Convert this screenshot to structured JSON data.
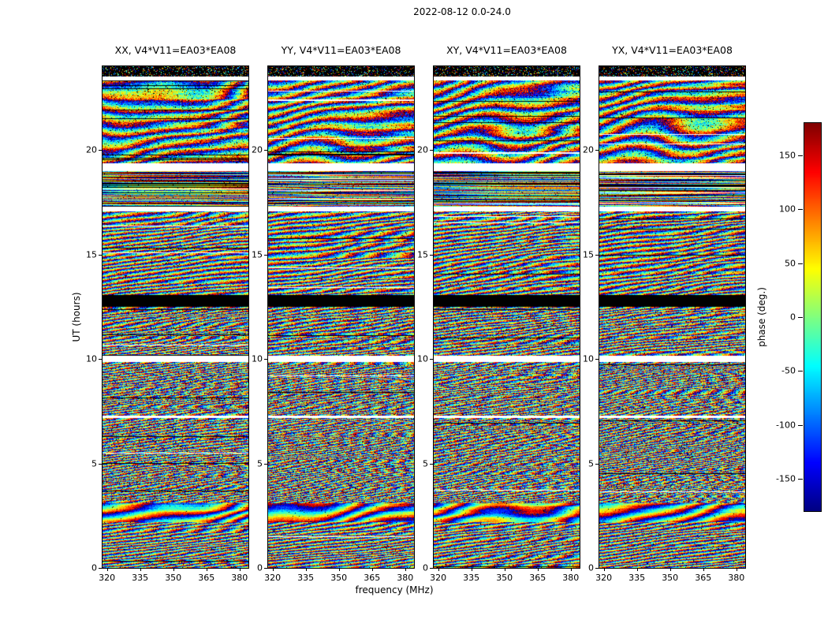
{
  "figure": {
    "title": "2022-08-12 0.0-24.0"
  },
  "axes": {
    "xlabel": "frequency (MHz)",
    "ylabel": "UT (hours)",
    "x_ticks": [
      320,
      335,
      350,
      365,
      380
    ],
    "y_ticks": [
      0,
      5,
      10,
      15,
      20
    ],
    "xlim": [
      318,
      384
    ],
    "ylim": [
      0,
      24
    ]
  },
  "colorbar": {
    "label": "phase (deg.)",
    "ticks": [
      150,
      100,
      50,
      0,
      -50,
      -100,
      -150
    ],
    "vmin": -180,
    "vmax": 180
  },
  "panels": [
    {
      "title": "XX, V4*V11=EA03*EA08"
    },
    {
      "title": "YY, V4*V11=EA03*EA08"
    },
    {
      "title": "XY, V4*V11=EA03*EA08"
    },
    {
      "title": "YX, V4*V11=EA03*EA08"
    }
  ],
  "chart_data": {
    "type": "heatmap",
    "title": "2022-08-12 0.0-24.0",
    "xlabel": "frequency (MHz)",
    "ylabel": "UT (hours)",
    "xlim": [
      318,
      384
    ],
    "ylim": [
      0,
      24
    ],
    "x_ticks": [
      320,
      335,
      350,
      365,
      380
    ],
    "y_ticks": [
      0,
      5,
      10,
      15,
      20
    ],
    "grid": false,
    "legend": null,
    "colormap": "jet",
    "value_label": "phase (deg.)",
    "value_range": [
      -180,
      180
    ],
    "colorbar_ticks": [
      150,
      100,
      50,
      0,
      -50,
      -100,
      -150
    ],
    "panels": [
      "XX, V4*V11=EA03*EA08",
      "YY, V4*V11=EA03*EA08",
      "XY, V4*V11=EA03*EA08",
      "YX, V4*V11=EA03*EA08"
    ],
    "description": "Four dynamic-spectrum panels of interferometric visibility phase (baseline V4*V11 = EA03*EA08) versus frequency and UT for 2022-08-12, polarizations XX/YY/XY/YX; values are noise-like wrapped phases rendered with a jet colormap. Exact per-pixel phases are not recoverable; the time-band structure below describes the visible content.",
    "time_bands": [
      {
        "t0": 23.5,
        "t1": 24.05,
        "style": "black",
        "speckle": 0.2,
        "note": "black strip with colored speckles at top"
      },
      {
        "t0": 23.33,
        "t1": 23.5,
        "style": "white",
        "note": "thin blank gap"
      },
      {
        "t0": 19.35,
        "t1": 23.33,
        "style": "fringes",
        "k": 2.2,
        "kvar": 1.6,
        "drift": 0.07,
        "jitter": 0.14,
        "noise": 0.3,
        "blob": 1.0,
        "rowdrop": 0.03,
        "whiterow": 0.012,
        "pepper": 0.045,
        "note": "broad diagonal phase swirls"
      },
      {
        "t0": 19.0,
        "t1": 19.35,
        "style": "white",
        "note": "blank gap"
      },
      {
        "t0": 17.3,
        "t1": 19.0,
        "style": "fringes",
        "k": 0.8,
        "kvar": 0.6,
        "drift": 0.55,
        "jitter": 0.55,
        "noise": 0.18,
        "blob": 0.15,
        "rowdrop": 0.2,
        "whiterow": 0.06,
        "pepper": 0.02,
        "note": "horizontally striped scan with dropouts"
      },
      {
        "t0": 17.05,
        "t1": 17.3,
        "style": "white",
        "note": "blank gap"
      },
      {
        "t0": 13.05,
        "t1": 17.05,
        "style": "fringes",
        "k": 4.0,
        "kvar": 2.0,
        "drift": 0.18,
        "jitter": 0.26,
        "noise": 0.3,
        "blob": 0.55,
        "rowdrop": 0.02,
        "whiterow": 0.006,
        "pepper": 0.03
      },
      {
        "t0": 12.5,
        "t1": 13.05,
        "style": "black",
        "speckle": 0.0,
        "note": "solid black band near UT 12.7"
      },
      {
        "t0": 10.15,
        "t1": 12.5,
        "style": "fringes",
        "k": 6.0,
        "kvar": 2.5,
        "drift": 0.25,
        "jitter": 0.35,
        "noise": 0.35,
        "blob": 0.4,
        "rowdrop": 0.02,
        "whiterow": 0.005,
        "pepper": 0.04
      },
      {
        "t0": 9.85,
        "t1": 10.15,
        "style": "white",
        "note": "blank gap near UT 10"
      },
      {
        "t0": 7.18,
        "t1": 7.3,
        "style": "white",
        "note": "thin blank line"
      },
      {
        "t0": 3.1,
        "t1": 9.85,
        "style": "fringes",
        "k": 8.5,
        "kvar": 3.0,
        "drift": 0.3,
        "jitter": 0.4,
        "noise": 0.4,
        "blob": 0.35,
        "rowdrop": 0.015,
        "whiterow": 0.004,
        "pepper": 0.04,
        "note": "dense fine fringes"
      },
      {
        "t0": 2.2,
        "t1": 3.1,
        "style": "fringes",
        "k": 2.5,
        "kvar": 1.2,
        "drift": 0.06,
        "jitter": 0.1,
        "noise": 0.15,
        "blob": 0.8,
        "rowdrop": 0.0,
        "whiterow": 0.0,
        "pepper": 0.01,
        "note": "smooth low-noise patch"
      },
      {
        "t0": 0.0,
        "t1": 2.2,
        "style": "fringes",
        "k": 6.5,
        "kvar": 2.0,
        "drift": 0.25,
        "jitter": 0.3,
        "noise": 0.3,
        "blob": 0.35,
        "rowdrop": 0.01,
        "whiterow": 0.004,
        "pepper": 0.03
      }
    ]
  }
}
